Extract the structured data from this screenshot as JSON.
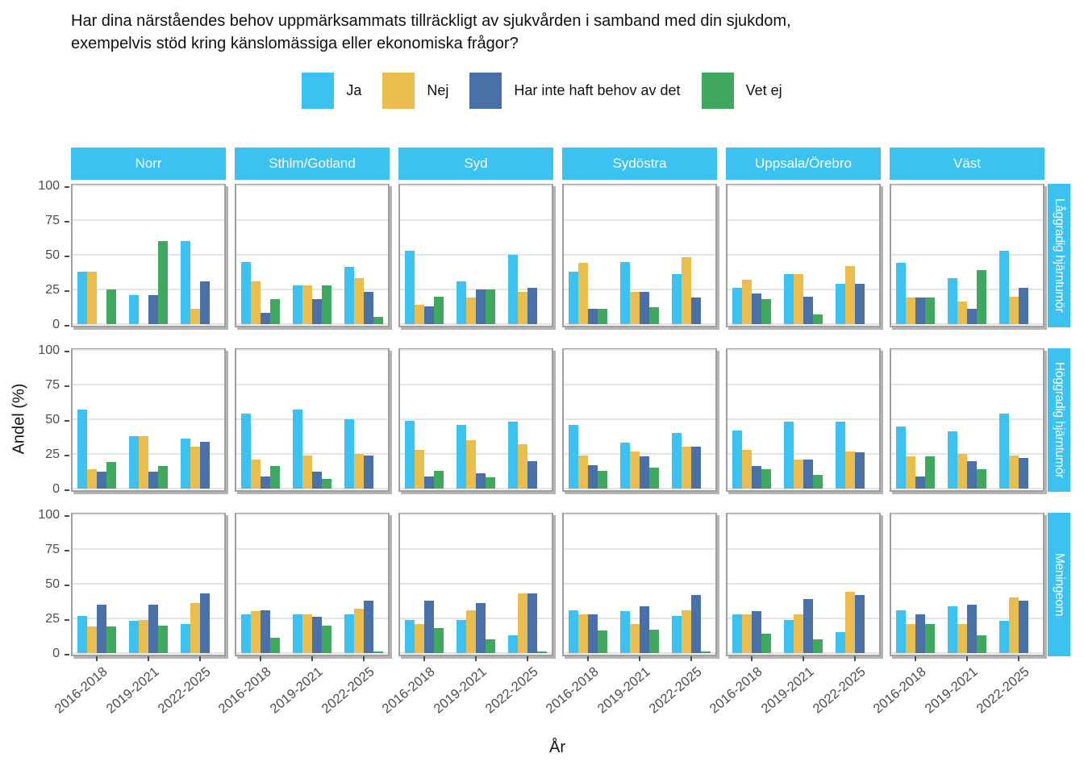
{
  "title": {
    "line1": "Har dina närståendes behov uppmärksammats tillräckligt av sjukvården i samband med din sjukdom,",
    "line2": "exempelvis stöd kring känslomässiga eller ekonomiska frågor?"
  },
  "chart_data": {
    "type": "bar",
    "title": "Har dina närståendes behov uppmärksammats tillräckligt av sjukvården i samband med din sjukdom, exempelvis stöd kring känslomässiga eller ekonomiska frågor?",
    "xlabel": "År",
    "ylabel": "Andel (%)",
    "ylim": [
      0,
      100
    ],
    "yticks": [
      0,
      25,
      50,
      75,
      100
    ],
    "grid": "horizontal",
    "legend_position": "top",
    "strip_color": "#3BC2F0",
    "categories": [
      "2016-2018",
      "2019-2021",
      "2022-2025"
    ],
    "series": [
      {
        "name": "Ja",
        "color": "#3BC2F0"
      },
      {
        "name": "Nej",
        "color": "#E9BE4E"
      },
      {
        "name": "Har inte haft behov av det",
        "color": "#4A70A8"
      },
      {
        "name": "Vet ej",
        "color": "#41A85F"
      }
    ],
    "col_facets": [
      "Norr",
      "Sthlm/Gotland",
      "Syd",
      "Sydöstra",
      "Uppsala/Örebro",
      "Väst"
    ],
    "row_facets": [
      "Låggradig hjärntumör",
      "Höggradig hjärntumör",
      "Meningeom"
    ],
    "values": {
      "Låggradig hjärntumör": {
        "Norr": [
          [
            38,
            38,
            null,
            25
          ],
          [
            21,
            null,
            21,
            60
          ],
          [
            60,
            11,
            31,
            null
          ]
        ],
        "Sthlm/Gotland": [
          [
            45,
            31,
            8,
            18
          ],
          [
            28,
            28,
            18,
            28
          ],
          [
            41,
            33,
            23,
            5
          ]
        ],
        "Syd": [
          [
            53,
            14,
            13,
            20
          ],
          [
            31,
            19,
            25,
            25
          ],
          [
            50,
            23,
            26,
            null
          ]
        ],
        "Sydöstra": [
          [
            38,
            44,
            11,
            11
          ],
          [
            45,
            23,
            23,
            12
          ],
          [
            36,
            48,
            19,
            null
          ]
        ],
        "Uppsala/Örebro": [
          [
            26,
            32,
            22,
            18
          ],
          [
            36,
            36,
            20,
            7
          ],
          [
            29,
            42,
            29,
            null
          ]
        ],
        "Väst": [
          [
            44,
            19,
            19,
            19
          ],
          [
            33,
            16,
            11,
            39
          ],
          [
            53,
            20,
            26,
            null
          ]
        ]
      },
      "Höggradig hjärntumör": {
        "Norr": [
          [
            57,
            14,
            12,
            19
          ],
          [
            38,
            38,
            12,
            16
          ],
          [
            36,
            30,
            34,
            null
          ]
        ],
        "Sthlm/Gotland": [
          [
            54,
            21,
            9,
            16
          ],
          [
            57,
            24,
            12,
            7
          ],
          [
            50,
            25,
            24,
            null
          ]
        ],
        "Syd": [
          [
            49,
            28,
            9,
            13
          ],
          [
            46,
            35,
            11,
            8
          ],
          [
            48,
            32,
            20,
            null
          ]
        ],
        "Sydöstra": [
          [
            46,
            24,
            17,
            13
          ],
          [
            33,
            27,
            23,
            15
          ],
          [
            40,
            30,
            30,
            null
          ]
        ],
        "Uppsala/Örebro": [
          [
            42,
            28,
            16,
            14
          ],
          [
            48,
            21,
            21,
            10
          ],
          [
            48,
            27,
            26,
            null
          ]
        ],
        "Väst": [
          [
            45,
            23,
            9,
            23
          ],
          [
            41,
            25,
            20,
            14
          ],
          [
            54,
            24,
            22,
            null
          ]
        ]
      },
      "Meningeom": {
        "Norr": [
          [
            27,
            19,
            35,
            19
          ],
          [
            23,
            24,
            35,
            20
          ],
          [
            21,
            36,
            43,
            null
          ]
        ],
        "Sthlm/Gotland": [
          [
            28,
            30,
            31,
            11
          ],
          [
            28,
            28,
            26,
            20
          ],
          [
            28,
            32,
            38,
            1
          ]
        ],
        "Syd": [
          [
            24,
            21,
            38,
            18
          ],
          [
            24,
            31,
            36,
            10
          ],
          [
            13,
            43,
            43,
            1
          ]
        ],
        "Sydöstra": [
          [
            31,
            28,
            28,
            16
          ],
          [
            30,
            21,
            34,
            17
          ],
          [
            27,
            31,
            42,
            1
          ]
        ],
        "Uppsala/Örebro": [
          [
            28,
            28,
            30,
            14
          ],
          [
            24,
            28,
            39,
            10
          ],
          [
            15,
            44,
            42,
            null
          ]
        ],
        "Väst": [
          [
            31,
            21,
            28,
            21
          ],
          [
            34,
            21,
            35,
            13
          ],
          [
            23,
            40,
            38,
            null
          ]
        ]
      }
    }
  }
}
